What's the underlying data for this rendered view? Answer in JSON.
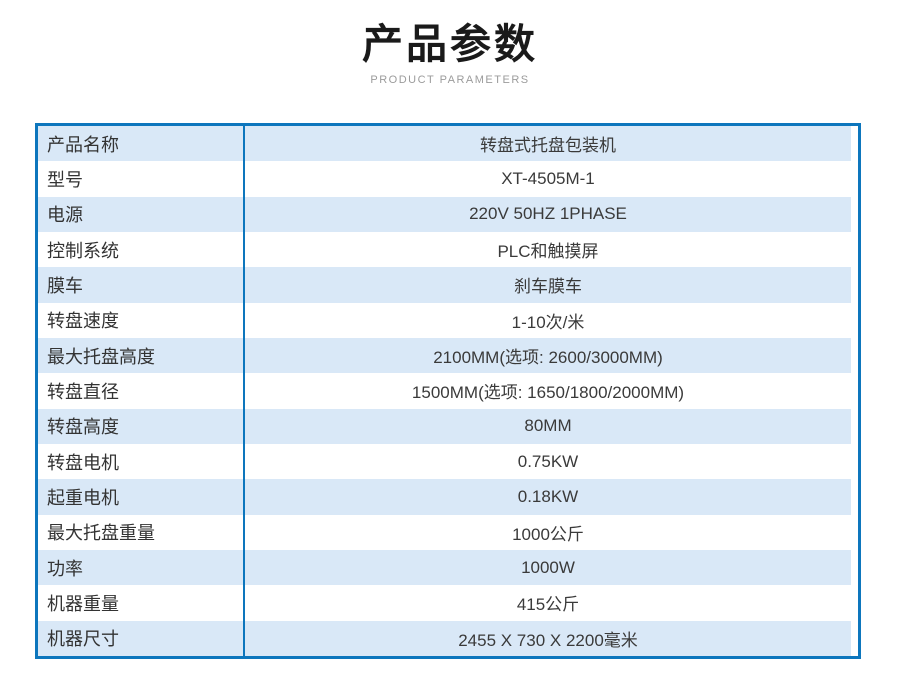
{
  "header": {
    "title": "产品参数",
    "subtitle": "PRODUCT PARAMETERS"
  },
  "colors": {
    "border_blue": "#0d76bd",
    "row_alt_blue": "#d9e8f7",
    "title_color": "#1a1a1a",
    "subtitle_gray": "#9b9b9b",
    "text_color": "#333333"
  },
  "table": {
    "rows": [
      {
        "label": "产品名称",
        "value": "转盘式托盘包装机"
      },
      {
        "label": "型号",
        "value": "XT-4505M-1"
      },
      {
        "label": "电源",
        "value": "220V 50HZ 1PHASE"
      },
      {
        "label": "控制系统",
        "value": "PLC和触摸屏"
      },
      {
        "label": "膜车",
        "value": "刹车膜车"
      },
      {
        "label": "转盘速度",
        "value": "1-10次/米"
      },
      {
        "label": "最大托盘高度",
        "value": "2100MM(选项: 2600/3000MM)"
      },
      {
        "label": "转盘直径",
        "value": "1500MM(选项: 1650/1800/2000MM)"
      },
      {
        "label": "转盘高度",
        "value": "80MM"
      },
      {
        "label": "转盘电机",
        "value": "0.75KW"
      },
      {
        "label": "起重电机",
        "value": "0.18KW"
      },
      {
        "label": "最大托盘重量",
        "value": "1000公斤"
      },
      {
        "label": "功率",
        "value": "1000W"
      },
      {
        "label": "机器重量",
        "value": "415公斤"
      },
      {
        "label": "机器尺寸",
        "value": "2455 X 730 X 2200毫米"
      }
    ]
  }
}
